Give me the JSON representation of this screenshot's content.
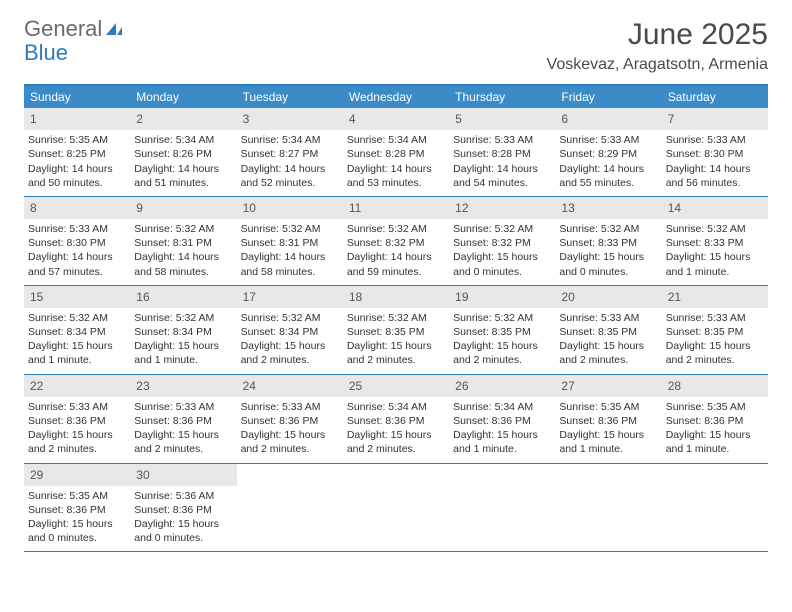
{
  "logo": {
    "text1": "General",
    "text2": "Blue"
  },
  "title": "June 2025",
  "location": "Voskevaz, Aragatsotn, Armenia",
  "colors": {
    "header_bg": "#3b8bc8",
    "border": "#2f7bbf",
    "daynum_bg": "#e8e8e8",
    "text": "#333333",
    "title": "#4a4a4a"
  },
  "dow": [
    "Sunday",
    "Monday",
    "Tuesday",
    "Wednesday",
    "Thursday",
    "Friday",
    "Saturday"
  ],
  "weeks": [
    [
      {
        "n": "1",
        "sunrise": "Sunrise: 5:35 AM",
        "sunset": "Sunset: 8:25 PM",
        "d1": "Daylight: 14 hours",
        "d2": "and 50 minutes."
      },
      {
        "n": "2",
        "sunrise": "Sunrise: 5:34 AM",
        "sunset": "Sunset: 8:26 PM",
        "d1": "Daylight: 14 hours",
        "d2": "and 51 minutes."
      },
      {
        "n": "3",
        "sunrise": "Sunrise: 5:34 AM",
        "sunset": "Sunset: 8:27 PM",
        "d1": "Daylight: 14 hours",
        "d2": "and 52 minutes."
      },
      {
        "n": "4",
        "sunrise": "Sunrise: 5:34 AM",
        "sunset": "Sunset: 8:28 PM",
        "d1": "Daylight: 14 hours",
        "d2": "and 53 minutes."
      },
      {
        "n": "5",
        "sunrise": "Sunrise: 5:33 AM",
        "sunset": "Sunset: 8:28 PM",
        "d1": "Daylight: 14 hours",
        "d2": "and 54 minutes."
      },
      {
        "n": "6",
        "sunrise": "Sunrise: 5:33 AM",
        "sunset": "Sunset: 8:29 PM",
        "d1": "Daylight: 14 hours",
        "d2": "and 55 minutes."
      },
      {
        "n": "7",
        "sunrise": "Sunrise: 5:33 AM",
        "sunset": "Sunset: 8:30 PM",
        "d1": "Daylight: 14 hours",
        "d2": "and 56 minutes."
      }
    ],
    [
      {
        "n": "8",
        "sunrise": "Sunrise: 5:33 AM",
        "sunset": "Sunset: 8:30 PM",
        "d1": "Daylight: 14 hours",
        "d2": "and 57 minutes."
      },
      {
        "n": "9",
        "sunrise": "Sunrise: 5:32 AM",
        "sunset": "Sunset: 8:31 PM",
        "d1": "Daylight: 14 hours",
        "d2": "and 58 minutes."
      },
      {
        "n": "10",
        "sunrise": "Sunrise: 5:32 AM",
        "sunset": "Sunset: 8:31 PM",
        "d1": "Daylight: 14 hours",
        "d2": "and 58 minutes."
      },
      {
        "n": "11",
        "sunrise": "Sunrise: 5:32 AM",
        "sunset": "Sunset: 8:32 PM",
        "d1": "Daylight: 14 hours",
        "d2": "and 59 minutes."
      },
      {
        "n": "12",
        "sunrise": "Sunrise: 5:32 AM",
        "sunset": "Sunset: 8:32 PM",
        "d1": "Daylight: 15 hours",
        "d2": "and 0 minutes."
      },
      {
        "n": "13",
        "sunrise": "Sunrise: 5:32 AM",
        "sunset": "Sunset: 8:33 PM",
        "d1": "Daylight: 15 hours",
        "d2": "and 0 minutes."
      },
      {
        "n": "14",
        "sunrise": "Sunrise: 5:32 AM",
        "sunset": "Sunset: 8:33 PM",
        "d1": "Daylight: 15 hours",
        "d2": "and 1 minute."
      }
    ],
    [
      {
        "n": "15",
        "sunrise": "Sunrise: 5:32 AM",
        "sunset": "Sunset: 8:34 PM",
        "d1": "Daylight: 15 hours",
        "d2": "and 1 minute."
      },
      {
        "n": "16",
        "sunrise": "Sunrise: 5:32 AM",
        "sunset": "Sunset: 8:34 PM",
        "d1": "Daylight: 15 hours",
        "d2": "and 1 minute."
      },
      {
        "n": "17",
        "sunrise": "Sunrise: 5:32 AM",
        "sunset": "Sunset: 8:34 PM",
        "d1": "Daylight: 15 hours",
        "d2": "and 2 minutes."
      },
      {
        "n": "18",
        "sunrise": "Sunrise: 5:32 AM",
        "sunset": "Sunset: 8:35 PM",
        "d1": "Daylight: 15 hours",
        "d2": "and 2 minutes."
      },
      {
        "n": "19",
        "sunrise": "Sunrise: 5:32 AM",
        "sunset": "Sunset: 8:35 PM",
        "d1": "Daylight: 15 hours",
        "d2": "and 2 minutes."
      },
      {
        "n": "20",
        "sunrise": "Sunrise: 5:33 AM",
        "sunset": "Sunset: 8:35 PM",
        "d1": "Daylight: 15 hours",
        "d2": "and 2 minutes."
      },
      {
        "n": "21",
        "sunrise": "Sunrise: 5:33 AM",
        "sunset": "Sunset: 8:35 PM",
        "d1": "Daylight: 15 hours",
        "d2": "and 2 minutes."
      }
    ],
    [
      {
        "n": "22",
        "sunrise": "Sunrise: 5:33 AM",
        "sunset": "Sunset: 8:36 PM",
        "d1": "Daylight: 15 hours",
        "d2": "and 2 minutes."
      },
      {
        "n": "23",
        "sunrise": "Sunrise: 5:33 AM",
        "sunset": "Sunset: 8:36 PM",
        "d1": "Daylight: 15 hours",
        "d2": "and 2 minutes."
      },
      {
        "n": "24",
        "sunrise": "Sunrise: 5:33 AM",
        "sunset": "Sunset: 8:36 PM",
        "d1": "Daylight: 15 hours",
        "d2": "and 2 minutes."
      },
      {
        "n": "25",
        "sunrise": "Sunrise: 5:34 AM",
        "sunset": "Sunset: 8:36 PM",
        "d1": "Daylight: 15 hours",
        "d2": "and 2 minutes."
      },
      {
        "n": "26",
        "sunrise": "Sunrise: 5:34 AM",
        "sunset": "Sunset: 8:36 PM",
        "d1": "Daylight: 15 hours",
        "d2": "and 1 minute."
      },
      {
        "n": "27",
        "sunrise": "Sunrise: 5:35 AM",
        "sunset": "Sunset: 8:36 PM",
        "d1": "Daylight: 15 hours",
        "d2": "and 1 minute."
      },
      {
        "n": "28",
        "sunrise": "Sunrise: 5:35 AM",
        "sunset": "Sunset: 8:36 PM",
        "d1": "Daylight: 15 hours",
        "d2": "and 1 minute."
      }
    ],
    [
      {
        "n": "29",
        "sunrise": "Sunrise: 5:35 AM",
        "sunset": "Sunset: 8:36 PM",
        "d1": "Daylight: 15 hours",
        "d2": "and 0 minutes."
      },
      {
        "n": "30",
        "sunrise": "Sunrise: 5:36 AM",
        "sunset": "Sunset: 8:36 PM",
        "d1": "Daylight: 15 hours",
        "d2": "and 0 minutes."
      },
      null,
      null,
      null,
      null,
      null
    ]
  ]
}
